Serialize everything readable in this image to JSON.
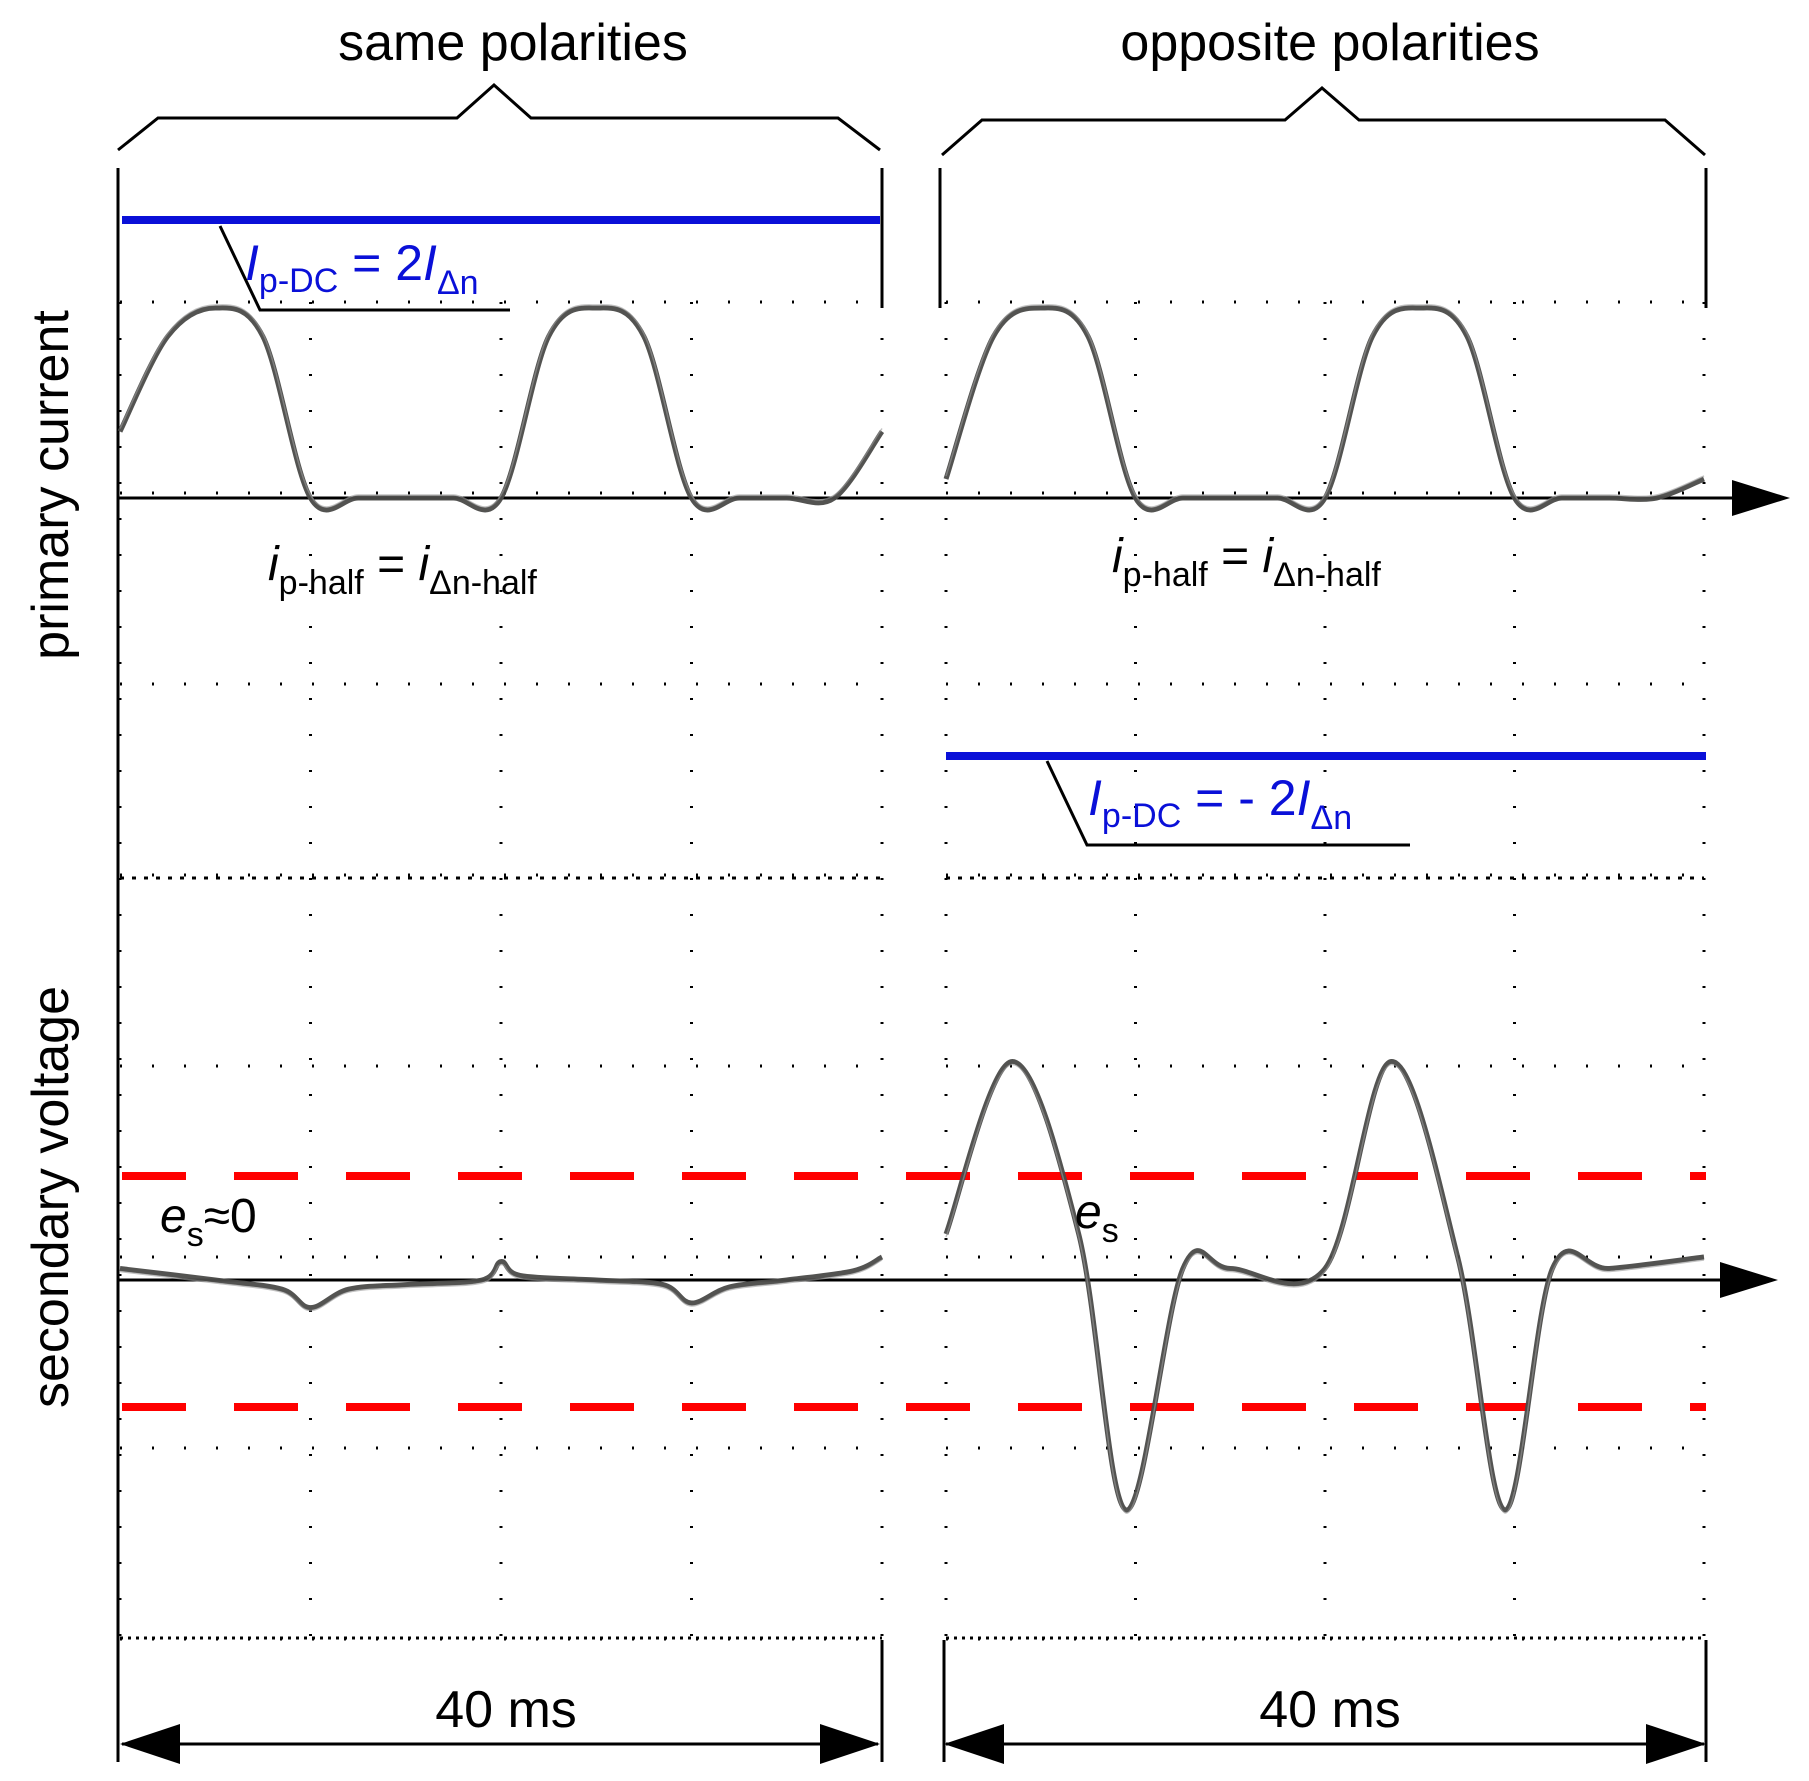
{
  "chart_data": {
    "type": "line",
    "title": "",
    "axis_labels": {
      "top_panel_ylabel": "primary current",
      "bottom_panel_ylabel": "secondary voltage"
    },
    "panels": [
      {
        "name": "same polarities",
        "header": "same polarities",
        "duration_label": "40 ms",
        "dc_label": {
          "I": "I",
          "sub": "p-DC",
          "rel": " = 2",
          "I2": "I",
          "sub2": "Δn"
        },
        "half_label": {
          "i": "i",
          "sub": "p-half",
          "eq": " = ",
          "i2": "i",
          "sub2": "Δn-half"
        },
        "es_label": {
          "e": "e",
          "sub": "s",
          "rest": "≈0"
        },
        "primary_current": {
          "x_ms": [
            0,
            2.5,
            5,
            7.5,
            10,
            12.5,
            15,
            17.5,
            20,
            22.5,
            25,
            27.5,
            30,
            32.5,
            35,
            37.5,
            40
          ],
          "y": [
            0.35,
            0.85,
            1.0,
            0.85,
            0.0,
            0.0,
            0.0,
            0.0,
            0.0,
            0.85,
            1.0,
            0.85,
            0.0,
            0.0,
            0.0,
            0.0,
            0.35
          ]
        },
        "secondary_voltage": {
          "x_ms": [
            0,
            5,
            8.5,
            10,
            12,
            15,
            19,
            20,
            21,
            25,
            28.5,
            30,
            32,
            35,
            38.5,
            40
          ],
          "y": [
            0.05,
            0.0,
            -0.04,
            -0.12,
            -0.04,
            -0.02,
            0.0,
            0.08,
            0.02,
            0.0,
            -0.02,
            -0.1,
            -0.03,
            0.0,
            0.04,
            0.1
          ]
        },
        "dc_level": 2,
        "threshold_upper": 1,
        "threshold_lower": -1
      },
      {
        "name": "opposite polarities",
        "header": "opposite polarities",
        "duration_label": "40 ms",
        "dc_label": {
          "I": "I",
          "sub": "p-DC",
          "rel": " = - 2",
          "I2": "I",
          "sub2": "Δn"
        },
        "half_label": {
          "i": "i",
          "sub": "p-half",
          "eq": " = ",
          "i2": "i",
          "sub2": "Δn-half"
        },
        "es_label": {
          "e": "e",
          "sub": "s",
          "rest": ""
        },
        "primary_current": {
          "x_ms": [
            0,
            2.5,
            5,
            7.5,
            10,
            12.5,
            15,
            17.5,
            20,
            22.5,
            25,
            27.5,
            30,
            32.5,
            35,
            37.5,
            40
          ],
          "y": [
            0.1,
            0.85,
            1.0,
            0.85,
            0.0,
            0.0,
            0.0,
            0.0,
            0.0,
            0.85,
            1.0,
            0.85,
            0.0,
            0.0,
            0.0,
            0.0,
            0.1
          ]
        },
        "secondary_voltage": {
          "x_ms": [
            0,
            3.5,
            7,
            9.5,
            12.5,
            15,
            20,
            23.5,
            27,
            29.5,
            32,
            35,
            40
          ],
          "y": [
            0.2,
            0.95,
            0.2,
            -1.0,
            0.05,
            0.05,
            0.05,
            0.95,
            0.1,
            -1.0,
            0.05,
            0.05,
            0.1
          ]
        },
        "dc_level": -2,
        "threshold_upper": 1,
        "threshold_lower": -1
      }
    ],
    "colors": {
      "dc_line": "#0a10d8",
      "threshold": "#ff0000",
      "trace": "#4a4a48"
    }
  }
}
